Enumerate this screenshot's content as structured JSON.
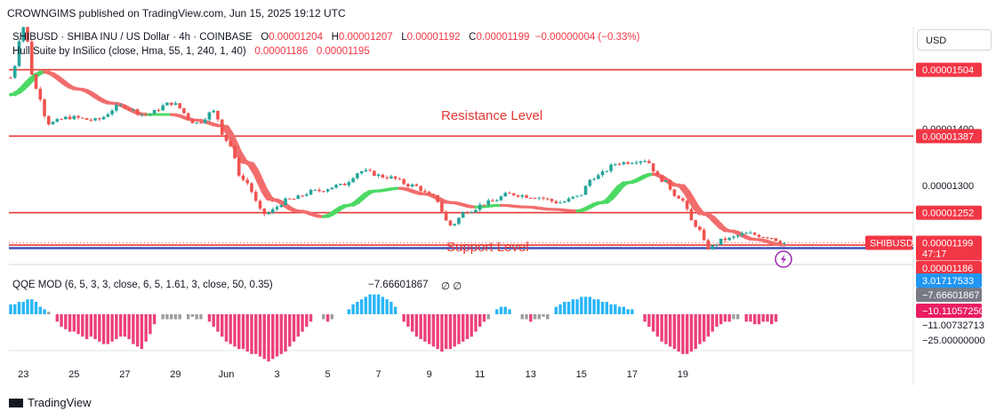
{
  "publisher_line": "CROWNGIMS published on TradingView.com, Jun 15, 2025 19:12 UTC",
  "currency_button": "USD",
  "footer_brand": "TradingView",
  "legend": {
    "symbol": "SHIBUSD · SHIBA INU / US Dollar · 4h · COINBASE",
    "o_label": "O",
    "o_value": "0.00001204",
    "h_label": "H",
    "h_value": "0.00001207",
    "l_label": "L",
    "l_value": "0.00001192",
    "c_label": "C",
    "c_value": "0.00001199",
    "change": "−0.00000004 (−0.33%)",
    "hull_name": "Hull Suite by InSilico (close, Hma, 55, 1, 240, 1, 40)",
    "hull_v1": "0.00001186",
    "hull_v2": "0.00001195",
    "qqe_name": "QQE MOD (6, 5, 3, 3, close, 6, 5, 1.61, 3, close, 50, 0.35)",
    "qqe_value": "−7.66601867",
    "qqe_na": "∅  ∅"
  },
  "annotations": {
    "resistance": "Resistance Level",
    "support": "Support Level"
  },
  "colors": {
    "up": "#26a69a",
    "down": "#ef5350",
    "hull_up": "#4cd964",
    "hull_down": "#f26d6d",
    "level": "#e53935",
    "support_line": "#3f51b5",
    "hist_pos": "#29b6f6",
    "hist_neg": "#ec407a",
    "hist_neutral": "#9e9e9e",
    "badge_red": "#f23645",
    "badge_blue": "#2196f3",
    "badge_gray": "#787b86",
    "badge_pink": "#e91e63"
  },
  "chart_data": [
    {
      "type": "candlestick",
      "title": "SHIBUSD · SHIBA INU / US Dollar · 4h · COINBASE",
      "ylim": [
        1.17e-05,
        1.58e-05
      ],
      "x_tick_labels": [
        "23",
        "25",
        "27",
        "29",
        "Jun",
        "3",
        "5",
        "7",
        "9",
        "11",
        "13",
        "15",
        "17",
        "19"
      ],
      "y_tick_labels": [
        "0.00001400",
        "0.00001300"
      ],
      "horizontal_levels": [
        "0.00001504",
        "0.00001387",
        "0.00001252",
        "0.00001195"
      ],
      "current_price": {
        "symbol": "SHIBUSD",
        "value": "0.00001199",
        "countdown": "47:17"
      },
      "partial_label": "0.00001186",
      "waypoints": [
        [
          0,
          1.49e-05
        ],
        [
          3,
          1.58e-05
        ],
        [
          6,
          1.47e-05
        ],
        [
          9,
          1.41e-05
        ],
        [
          14,
          1.42e-05
        ],
        [
          20,
          1.415e-05
        ],
        [
          26,
          1.44e-05
        ],
        [
          32,
          1.425e-05
        ],
        [
          38,
          1.445e-05
        ],
        [
          44,
          1.41e-05
        ],
        [
          48,
          1.43e-05
        ],
        [
          51,
          1.38e-05
        ],
        [
          55,
          1.31e-05
        ],
        [
          60,
          1.25e-05
        ],
        [
          66,
          1.275e-05
        ],
        [
          72,
          1.29e-05
        ],
        [
          78,
          1.3e-05
        ],
        [
          83,
          1.325e-05
        ],
        [
          89,
          1.315e-05
        ],
        [
          95,
          1.3e-05
        ],
        [
          100,
          1.28e-05
        ],
        [
          104,
          1.23e-05
        ],
        [
          108,
          1.255e-05
        ],
        [
          113,
          1.27e-05
        ],
        [
          118,
          1.285e-05
        ],
        [
          124,
          1.28e-05
        ],
        [
          130,
          1.27e-05
        ],
        [
          134,
          1.28e-05
        ],
        [
          138,
          1.315e-05
        ],
        [
          144,
          1.34e-05
        ],
        [
          150,
          1.345e-05
        ],
        [
          154,
          1.31e-05
        ],
        [
          158,
          1.28e-05
        ],
        [
          162,
          1.23e-05
        ],
        [
          165,
          1.19e-05
        ],
        [
          169,
          1.205e-05
        ],
        [
          174,
          1.215e-05
        ],
        [
          179,
          1.21e-05
        ],
        [
          183,
          1.199e-05
        ]
      ],
      "hull_waypoints": [
        [
          0,
          1.46e-05
        ],
        [
          8,
          1.5e-05
        ],
        [
          16,
          1.47e-05
        ],
        [
          24,
          1.445e-05
        ],
        [
          32,
          1.425e-05
        ],
        [
          38,
          1.425e-05
        ],
        [
          44,
          1.415e-05
        ],
        [
          50,
          1.405e-05
        ],
        [
          56,
          1.34e-05
        ],
        [
          62,
          1.275e-05
        ],
        [
          68,
          1.255e-05
        ],
        [
          74,
          1.245e-05
        ],
        [
          80,
          1.265e-05
        ],
        [
          86,
          1.29e-05
        ],
        [
          92,
          1.295e-05
        ],
        [
          98,
          1.285e-05
        ],
        [
          104,
          1.27e-05
        ],
        [
          110,
          1.262e-05
        ],
        [
          116,
          1.265e-05
        ],
        [
          122,
          1.262e-05
        ],
        [
          128,
          1.258e-05
        ],
        [
          134,
          1.255e-05
        ],
        [
          140,
          1.27e-05
        ],
        [
          146,
          1.305e-05
        ],
        [
          152,
          1.32e-05
        ],
        [
          158,
          1.3e-05
        ],
        [
          164,
          1.25e-05
        ],
        [
          170,
          1.22e-05
        ],
        [
          176,
          1.205e-05
        ],
        [
          183,
          1.195e-05
        ]
      ]
    },
    {
      "type": "histogram",
      "title": "QQE MOD (6, 5, 3, 3, close, 6, 5, 1.61, 3, close, 50, 0.35)",
      "y_tick_labels": [
        "3.01717533",
        "−7.66601867",
        "−10.11057250",
        "−11.00732713",
        "−25.00000000"
      ],
      "ylim": [
        -25,
        6
      ],
      "segments": [
        {
          "from": 0,
          "to": 9,
          "values": [
            4,
            4,
            5,
            5,
            6,
            6,
            5,
            3,
            2,
            1
          ]
        },
        {
          "from": 11,
          "to": 34,
          "values": [
            -3,
            -5,
            -6,
            -7,
            -7,
            -8,
            -9,
            -10,
            -9,
            -10,
            -11,
            -12,
            -12,
            -11,
            -10,
            -9,
            -9,
            -10,
            -12,
            -13,
            -14,
            -11,
            -8,
            -4
          ]
        },
        {
          "from": 36,
          "to": 40,
          "values": [
            -2,
            -2,
            -2,
            -2,
            -2
          ]
        },
        {
          "from": 42,
          "to": 45,
          "values": [
            -2,
            -1,
            -2,
            -2
          ]
        },
        {
          "from": 47,
          "to": 71,
          "values": [
            -3,
            -5,
            -7,
            -9,
            -11,
            -12,
            -13,
            -14,
            -14,
            -15,
            -16,
            -16,
            -17,
            -18,
            -19,
            -18,
            -17,
            -16,
            -15,
            -13,
            -11,
            -9,
            -7,
            -5,
            -3
          ]
        },
        {
          "from": 74,
          "to": 76,
          "values": [
            -2,
            -3,
            -2
          ]
        },
        {
          "from": 80,
          "to": 91,
          "values": [
            2,
            4,
            5,
            6,
            7,
            8,
            8,
            8,
            7,
            6,
            5,
            3
          ]
        },
        {
          "from": 93,
          "to": 113,
          "values": [
            -3,
            -5,
            -7,
            -9,
            -10,
            -11,
            -12,
            -13,
            -14,
            -15,
            -14,
            -14,
            -13,
            -12,
            -11,
            -10,
            -9,
            -7,
            -5,
            -3,
            -2
          ]
        },
        {
          "from": 115,
          "to": 118,
          "values": [
            2,
            3,
            3,
            2
          ]
        },
        {
          "from": 121,
          "to": 127,
          "values": [
            -2,
            -2,
            -3,
            -2,
            -2,
            -1,
            -2
          ]
        },
        {
          "from": 129,
          "to": 147,
          "values": [
            3,
            4,
            5,
            5,
            6,
            6,
            7,
            7,
            7,
            6,
            6,
            5,
            5,
            4,
            4,
            3,
            3,
            2,
            2
          ]
        },
        {
          "from": 150,
          "to": 172,
          "values": [
            -3,
            -5,
            -7,
            -9,
            -11,
            -12,
            -13,
            -14,
            -15,
            -16,
            -16,
            -15,
            -14,
            -12,
            -11,
            -9,
            -7,
            -5,
            -4,
            -3,
            -3,
            -2,
            -2
          ]
        },
        {
          "from": 174,
          "to": 181,
          "values": [
            -3,
            -3,
            -4,
            -4,
            -3,
            -3,
            -4,
            -3
          ]
        }
      ]
    }
  ]
}
